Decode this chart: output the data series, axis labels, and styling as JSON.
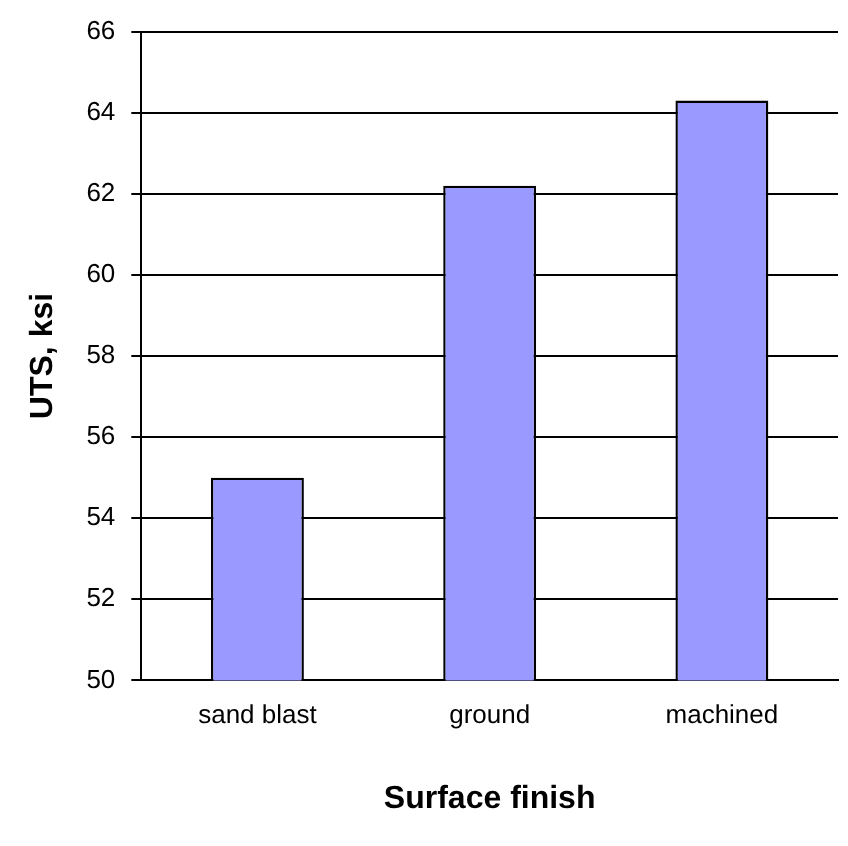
{
  "chart_data": {
    "type": "bar",
    "xlabel": "Surface finish",
    "ylabel": "UTS, ksi",
    "categories": [
      "sand blast",
      "ground",
      "machined"
    ],
    "values": [
      55.0,
      62.2,
      64.3
    ],
    "color": "#9999ff",
    "ylim": [
      50,
      66
    ],
    "yticks": [
      50,
      52,
      54,
      56,
      58,
      60,
      62,
      64,
      66
    ],
    "grid": "y",
    "legend": false
  }
}
